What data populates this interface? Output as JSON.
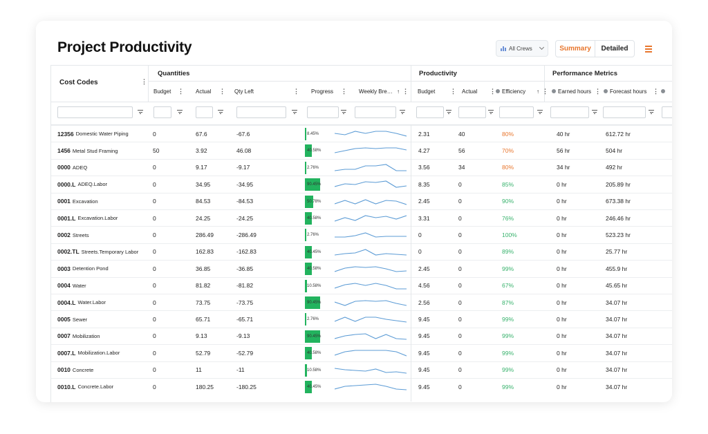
{
  "page": {
    "title": "Project Productivity",
    "crew_filter": "All Crews",
    "view_toggle": {
      "summary": "Summary",
      "detailed": "Detailed"
    },
    "accent_color": "#e8762d",
    "progress_color": "#22b35e",
    "spark_color": "#5b9bd5"
  },
  "groups": {
    "quantities": "Quantities",
    "productivity": "Productivity",
    "performance": "Performance Metrics"
  },
  "columns": {
    "cost_codes": "Cost Codes",
    "budget": "Budget",
    "actual": "Actual",
    "qty_left": "Qty Left",
    "progress": "Progress",
    "weekly": "Weekly Bre…",
    "p_budget": "Budget",
    "p_actual": "Actual",
    "efficiency": "Efficiency",
    "earned_hours": "Earned hours",
    "forecast_hours": "Forecast hours"
  },
  "rows": [
    {
      "code": "12356",
      "name": "Domestic Water Piping",
      "budget": "0",
      "actual": "67.6",
      "qty_left": "-67.6",
      "progress_label": "8.45%",
      "progress": 8.45,
      "p_budget": "2.31",
      "p_actual": "40",
      "efficiency": "80%",
      "eff_color": "orange",
      "earned": "40 hr",
      "forecast": "612.72 hr",
      "spark": [
        6,
        8,
        3,
        6,
        3,
        3,
        6,
        10
      ]
    },
    {
      "code": "1456",
      "name": "Metal Stud Framing",
      "budget": "50",
      "actual": "3.92",
      "qty_left": "46.08",
      "progress_label": "40.58%",
      "progress": 40.58,
      "p_budget": "4.27",
      "p_actual": "56",
      "efficiency": "70%",
      "eff_color": "orange",
      "earned": "56 hr",
      "forecast": "504 hr",
      "spark": [
        10,
        7,
        4,
        3,
        4,
        3,
        3,
        6
      ]
    },
    {
      "code": "0000",
      "name": "ADEQ",
      "budget": "0",
      "actual": "9.17",
      "qty_left": "-9.17",
      "progress_label": "2.76%",
      "progress": 2.76,
      "p_budget": "3.56",
      "p_actual": "34",
      "efficiency": "80%",
      "eff_color": "orange",
      "earned": "34 hr",
      "forecast": "492 hr",
      "spark": [
        11,
        9,
        9,
        4,
        4,
        2,
        11,
        11
      ]
    },
    {
      "code": "0000.L",
      "name": "ADEQ.Labor",
      "budget": "0",
      "actual": "34.95",
      "qty_left": "-34.95",
      "progress_label": "90.45%",
      "progress": 90.45,
      "p_budget": "8.35",
      "p_actual": "0",
      "efficiency": "85%",
      "eff_color": "green",
      "earned": "0 hr",
      "forecast": "205.89 hr",
      "spark": [
        10,
        6,
        7,
        3,
        4,
        2,
        11,
        9
      ]
    },
    {
      "code": "0001",
      "name": "Excavation",
      "budget": "0",
      "actual": "84.53",
      "qty_left": "-84.53",
      "progress_label": "50.78%",
      "progress": 50.78,
      "p_budget": "2.45",
      "p_actual": "0",
      "efficiency": "90%",
      "eff_color": "green",
      "earned": "0 hr",
      "forecast": "673.38 hr",
      "spark": [
        10,
        5,
        10,
        4,
        10,
        5,
        6,
        11
      ]
    },
    {
      "code": "0001.L",
      "name": "Excavation.Labor",
      "budget": "0",
      "actual": "24.25",
      "qty_left": "-24.25",
      "progress_label": "40.58%",
      "progress": 40.58,
      "p_budget": "3.31",
      "p_actual": "0",
      "efficiency": "76%",
      "eff_color": "green",
      "earned": "0 hr",
      "forecast": "246.46 hr",
      "spark": [
        11,
        6,
        10,
        3,
        6,
        4,
        8,
        3
      ]
    },
    {
      "code": "0002",
      "name": "Streets",
      "budget": "0",
      "actual": "286.49",
      "qty_left": "-286.49",
      "progress_label": "2.76%",
      "progress": 2.76,
      "p_budget": "0",
      "p_actual": "0",
      "efficiency": "100%",
      "eff_color": "green",
      "earned": "0 hr",
      "forecast": "523.23 hr",
      "spark": [
        10,
        10,
        8,
        4,
        10,
        9,
        9,
        9
      ]
    },
    {
      "code": "0002.TL",
      "name": "Streets.Temporary Labor",
      "budget": "0",
      "actual": "162.83",
      "qty_left": "-162.83",
      "progress_label": "40.45%",
      "progress": 40.45,
      "p_budget": "0",
      "p_actual": "0",
      "efficiency": "89%",
      "eff_color": "green",
      "earned": "0 hr",
      "forecast": "25.77 hr",
      "spark": [
        11,
        9,
        8,
        3,
        11,
        9,
        10,
        11
      ]
    },
    {
      "code": "0003",
      "name": "Detention Pond",
      "budget": "0",
      "actual": "36.85",
      "qty_left": "-36.85",
      "progress_label": "40.58%",
      "progress": 40.58,
      "p_budget": "2.45",
      "p_actual": "0",
      "efficiency": "99%",
      "eff_color": "green",
      "earned": "0 hr",
      "forecast": "455.9 hr",
      "spark": [
        11,
        6,
        4,
        5,
        4,
        7,
        11,
        10
      ]
    },
    {
      "code": "0004",
      "name": "Water",
      "budget": "0",
      "actual": "81.82",
      "qty_left": "-81.82",
      "progress_label": "10.58%",
      "progress": 10.58,
      "p_budget": "4.56",
      "p_actual": "0",
      "efficiency": "67%",
      "eff_color": "green",
      "earned": "0 hr",
      "forecast": "45.65 hr",
      "spark": [
        10,
        5,
        3,
        6,
        3,
        6,
        11,
        11
      ]
    },
    {
      "code": "0004.L",
      "name": "Water.Labor",
      "budget": "0",
      "actual": "73.75",
      "qty_left": "-73.75",
      "progress_label": "90.45%",
      "progress": 90.45,
      "p_budget": "2.56",
      "p_actual": "0",
      "efficiency": "87%",
      "eff_color": "green",
      "earned": "0 hr",
      "forecast": "34.07 hr",
      "spark": [
        6,
        11,
        5,
        4,
        5,
        4,
        8,
        11
      ]
    },
    {
      "code": "0005",
      "name": "Sewer",
      "budget": "0",
      "actual": "65.71",
      "qty_left": "-65.71",
      "progress_label": "2.76%",
      "progress": 2.76,
      "p_budget": "9.45",
      "p_actual": "0",
      "efficiency": "99%",
      "eff_color": "green",
      "earned": "0 hr",
      "forecast": "34.07 hr",
      "spark": [
        10,
        4,
        10,
        4,
        4,
        7,
        9,
        11
      ]
    },
    {
      "code": "0007",
      "name": "Mobilization",
      "budget": "0",
      "actual": "9.13",
      "qty_left": "-9.13",
      "progress_label": "90.45%",
      "progress": 90.45,
      "p_budget": "9.45",
      "p_actual": "0",
      "efficiency": "99%",
      "eff_color": "green",
      "earned": "0 hr",
      "forecast": "34.07 hr",
      "spark": [
        10,
        6,
        4,
        3,
        10,
        4,
        10,
        11
      ]
    },
    {
      "code": "0007.L",
      "name": "Mobilization.Labor",
      "budget": "0",
      "actual": "52.79",
      "qty_left": "-52.79",
      "progress_label": "40.58%",
      "progress": 40.58,
      "p_budget": "9.45",
      "p_actual": "0",
      "efficiency": "99%",
      "eff_color": "green",
      "earned": "0 hr",
      "forecast": "34.07 hr",
      "spark": [
        10,
        5,
        3,
        3,
        3,
        3,
        5,
        11
      ]
    },
    {
      "code": "0010",
      "name": "Concrete",
      "budget": "0",
      "actual": "11",
      "qty_left": "-11",
      "progress_label": "10.58%",
      "progress": 10.58,
      "p_budget": "9.45",
      "p_actual": "0",
      "efficiency": "99%",
      "eff_color": "green",
      "earned": "0 hr",
      "forecast": "34.07 hr",
      "spark": [
        4,
        6,
        7,
        8,
        5,
        10,
        9,
        11
      ]
    },
    {
      "code": "0010.L",
      "name": "Concrete.Labor",
      "budget": "0",
      "actual": "180.25",
      "qty_left": "-180.25",
      "progress_label": "40.45%",
      "progress": 40.45,
      "p_budget": "9.45",
      "p_actual": "0",
      "efficiency": "99%",
      "eff_color": "green",
      "earned": "0 hr",
      "forecast": "34.07 hr",
      "spark": [
        10,
        6,
        5,
        4,
        3,
        6,
        10,
        11
      ]
    }
  ]
}
